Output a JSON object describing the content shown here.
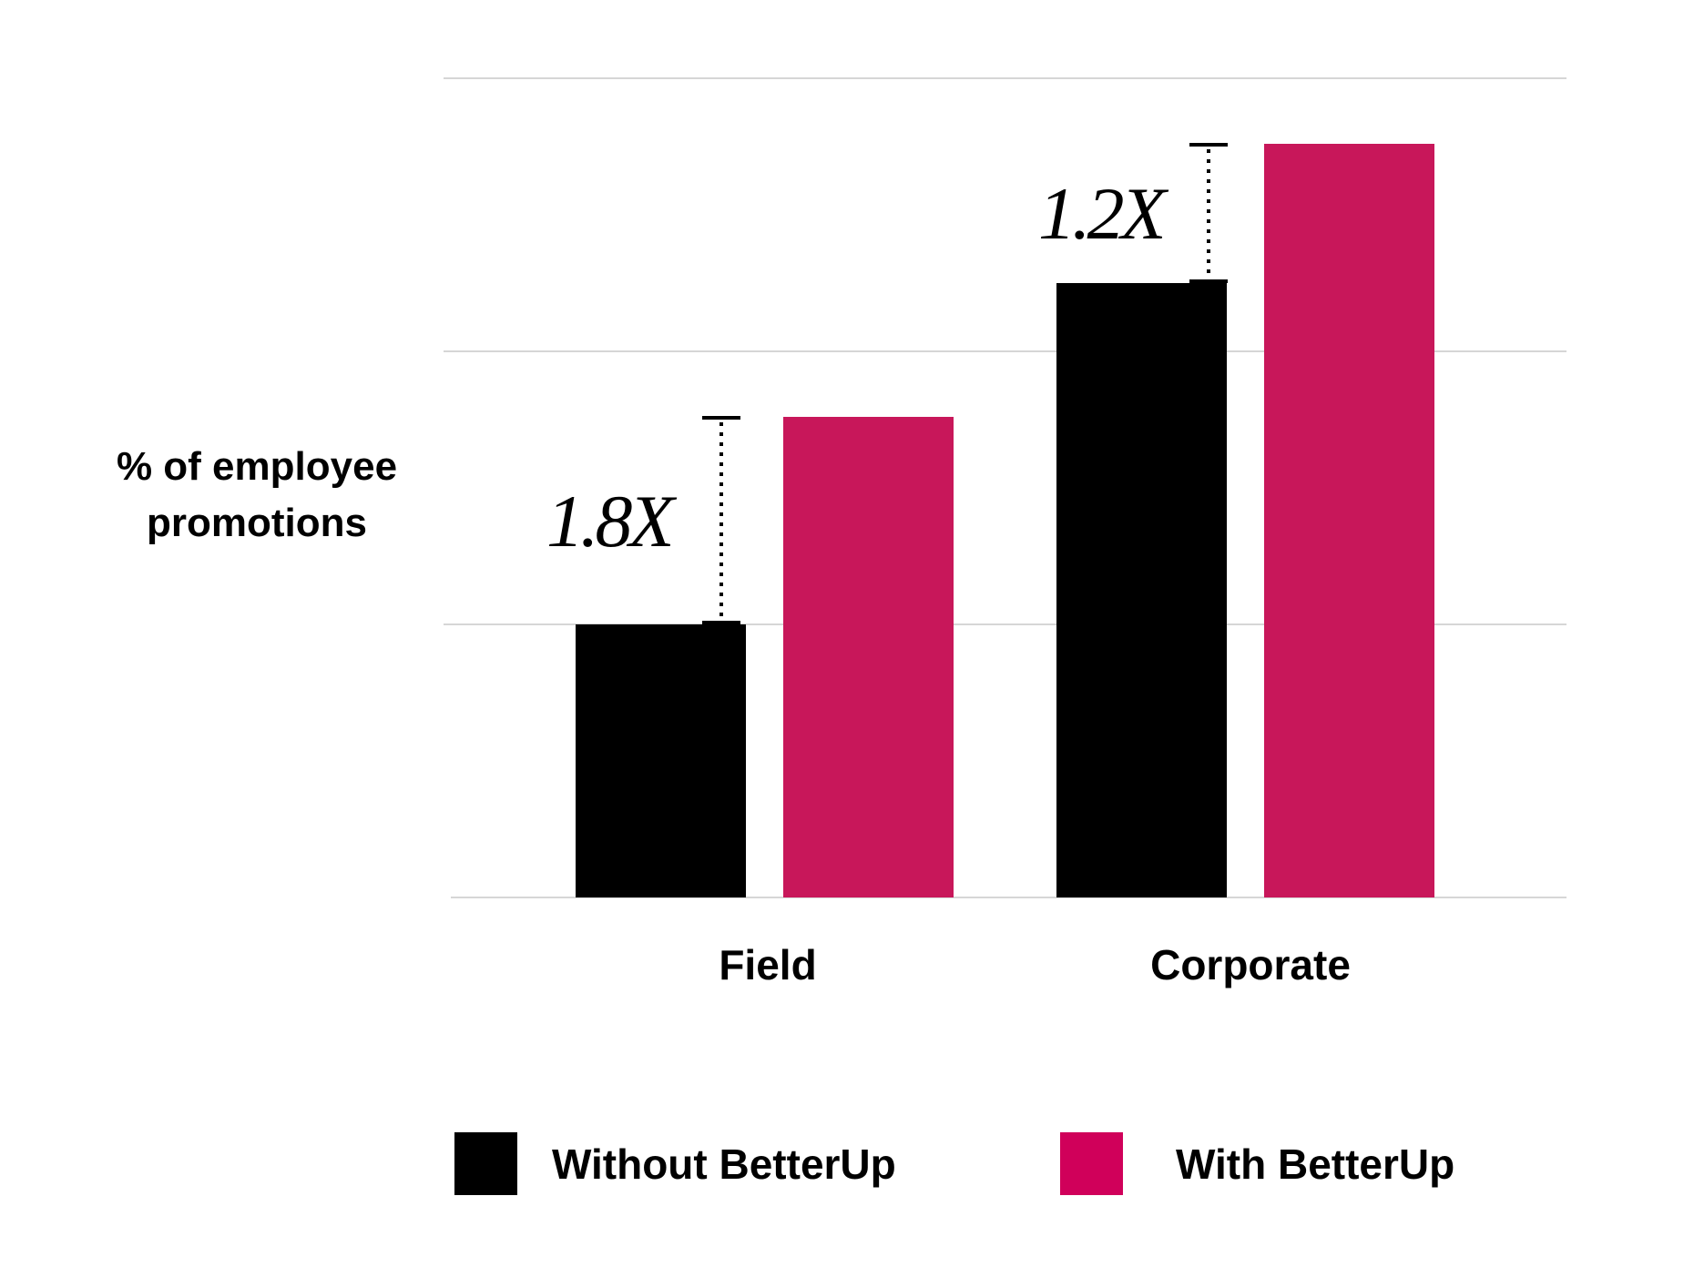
{
  "chart_data": {
    "type": "bar",
    "categories": [
      "Field",
      "Corporate"
    ],
    "series": [
      {
        "name": "Without BetterUp",
        "color": "#000000",
        "values": [
          1.0,
          2.25
        ]
      },
      {
        "name": "With BetterUp",
        "color": "#C8175A",
        "values": [
          1.76,
          2.76
        ]
      }
    ],
    "ylabel": "% of employee promotions",
    "ylim": [
      0,
      3
    ],
    "grid": true,
    "y_tick_labels_shown": false,
    "annotations": [
      {
        "category": "Field",
        "text": "1.8X"
      },
      {
        "category": "Corporate",
        "text": "1.2X"
      }
    ],
    "legend": {
      "placement": "bottom",
      "swatch_colors": [
        "#000000",
        "#D0005A"
      ]
    }
  }
}
